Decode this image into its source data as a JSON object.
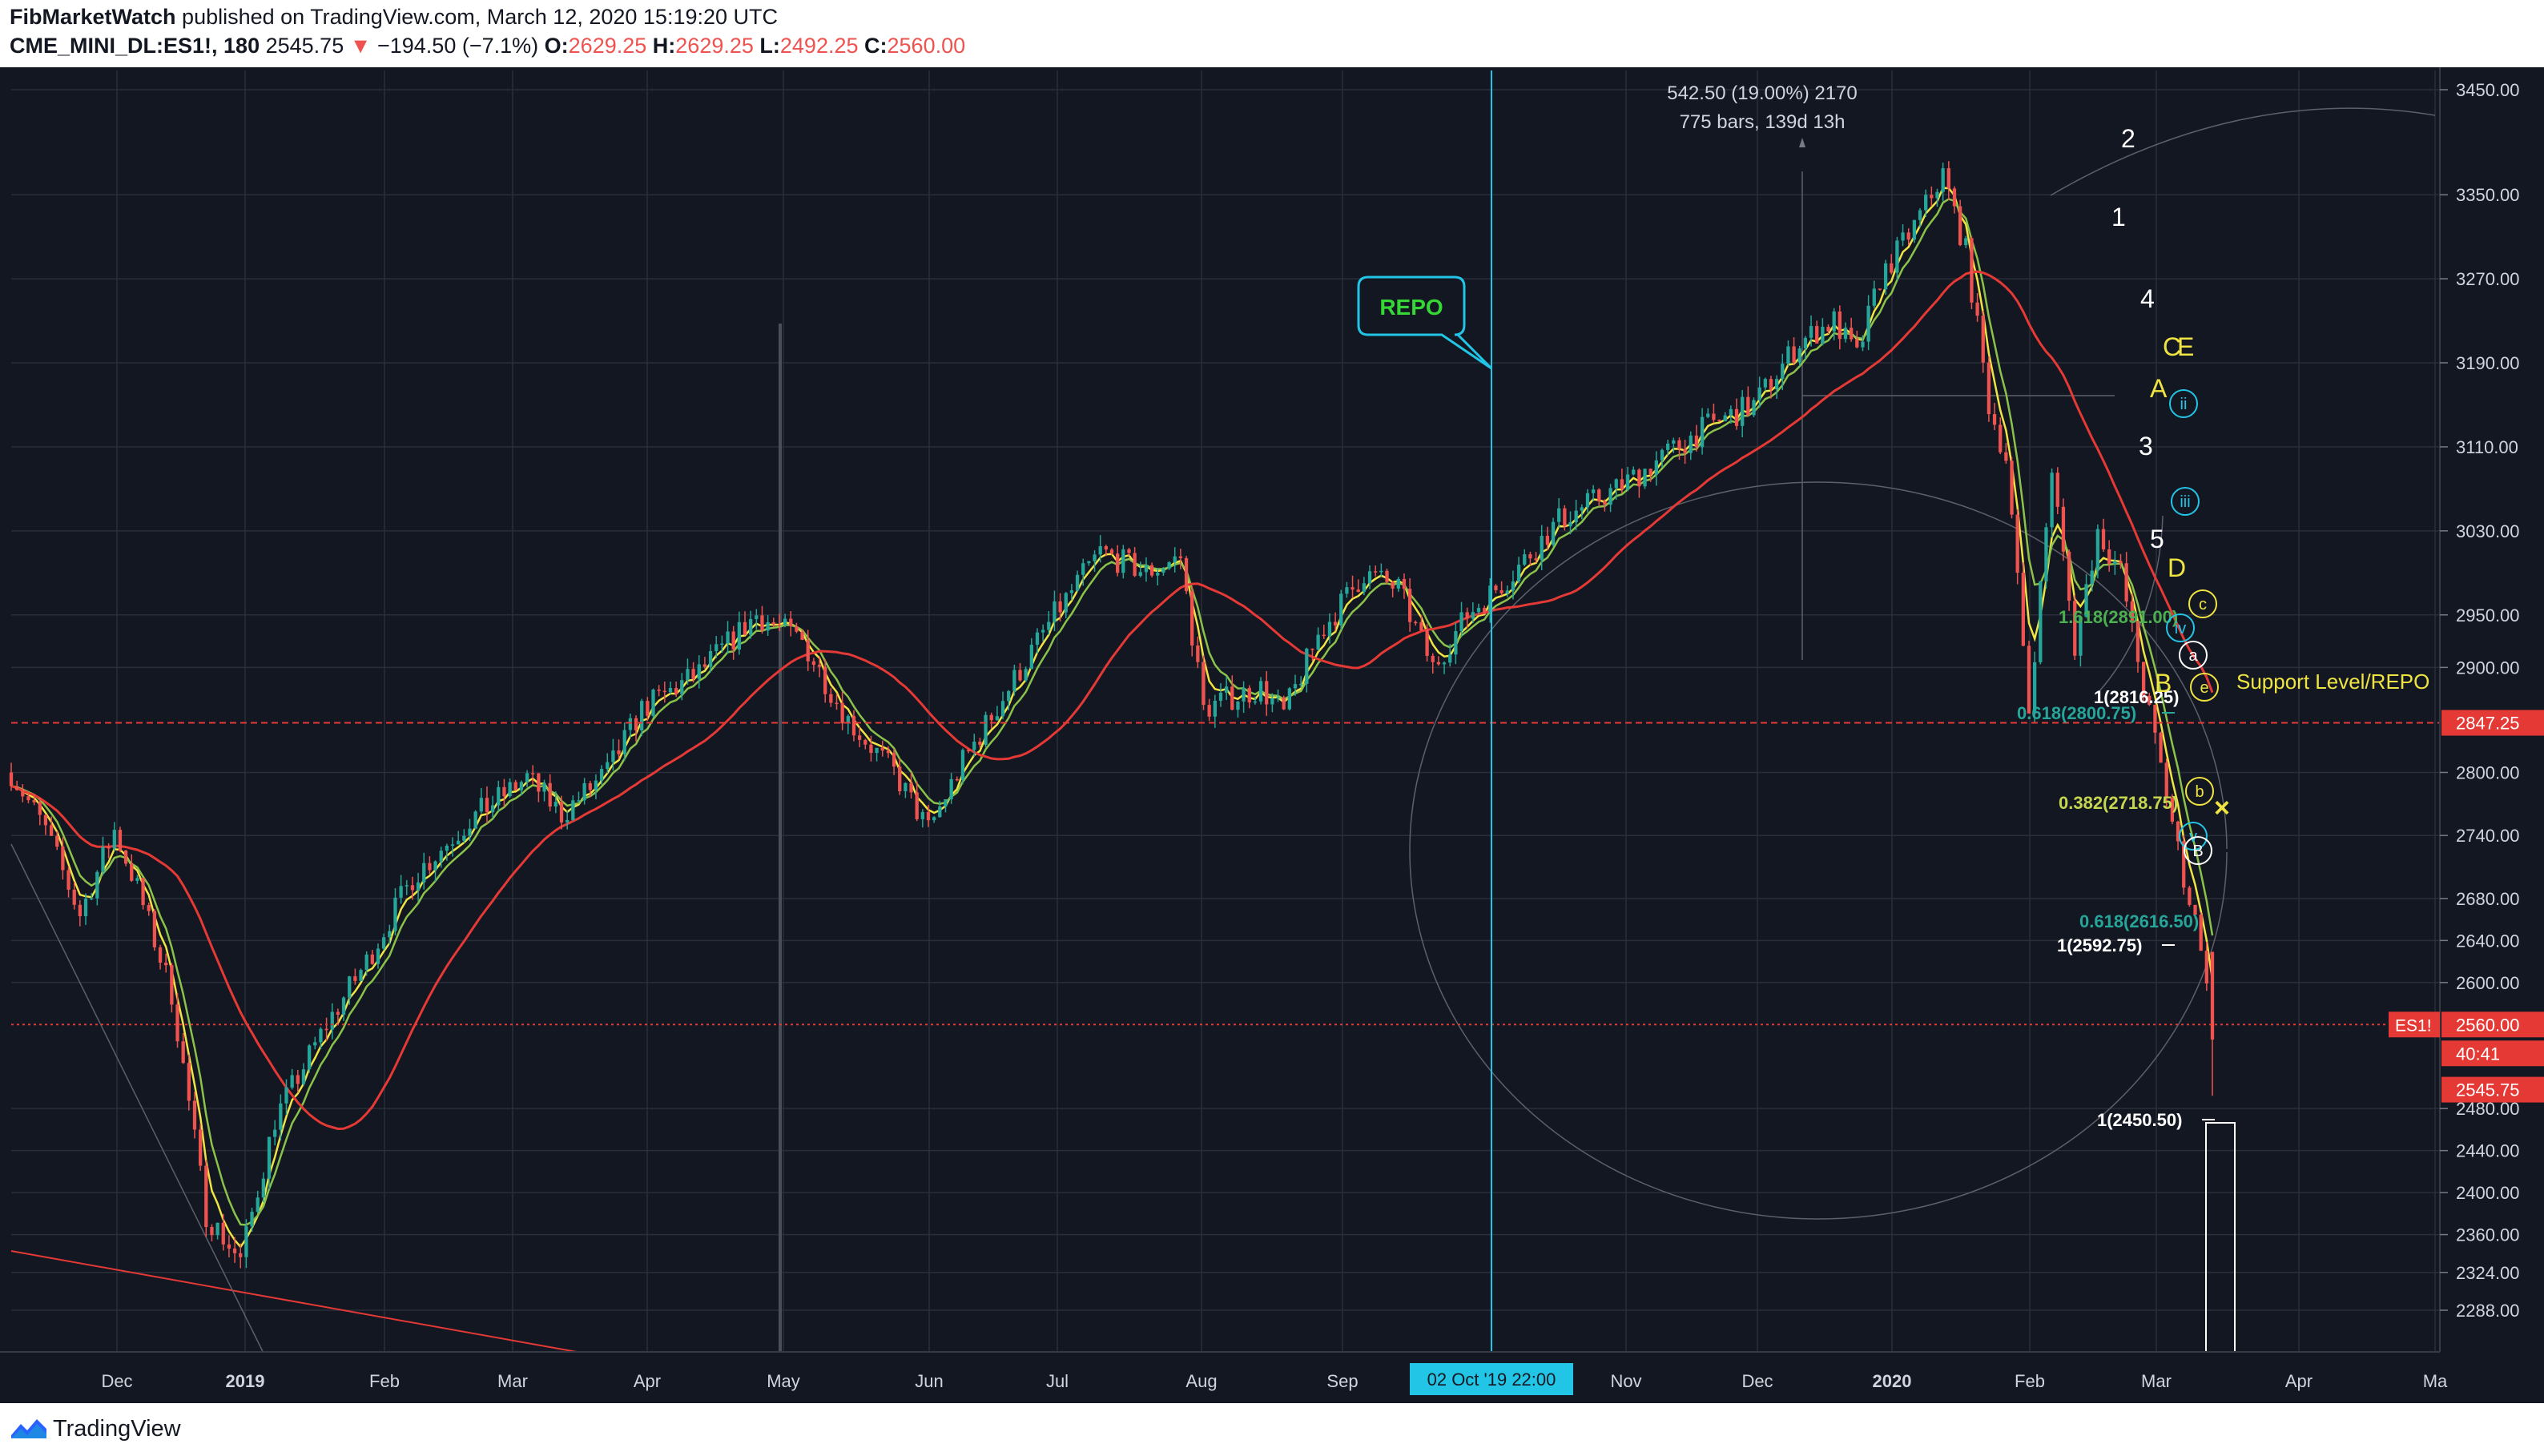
{
  "header": {
    "author": "FibMarketWatch",
    "published_text": "published on TradingView.com, March 12, 2020 15:19:20 UTC",
    "symbol": "CME_MINI_DL:ES1!, 180",
    "last_price": "2545.75",
    "change_arrow": "▼",
    "change": "−194.50 (−7.1%)",
    "o_label": "O:",
    "o_value": "2629.25",
    "h_label": "H:",
    "h_value": "2629.25",
    "l_label": "L:",
    "l_value": "2492.25",
    "c_label": "C:",
    "c_value": "2560.00"
  },
  "footer": {
    "brand": "TradingView"
  },
  "colors": {
    "background": "#131722",
    "grid": "#2a2e39",
    "candle_up": "#26a69a",
    "candle_down": "#ef5350",
    "ema_yellow": "#f0e442",
    "ema_green": "#8bc34a",
    "sma_red": "#e53935",
    "cyan": "#22c5e5"
  },
  "chart_data": {
    "type": "candlestick",
    "y_axis_ticks": [
      3450,
      3350,
      3270,
      3190,
      3110,
      3030,
      2950,
      2900,
      2800,
      2740,
      2680,
      2640,
      2600,
      2480,
      2440,
      2400,
      2360,
      2324,
      2288
    ],
    "y_axis_tick_labels": [
      "3450.00",
      "3350.00",
      "3270.00",
      "3190.00",
      "3110.00",
      "3030.00",
      "2950.00",
      "2900.00",
      "2800.00",
      "2740.00",
      "2680.00",
      "2640.00",
      "2600.00",
      "2480.00",
      "2440.00",
      "2400.00",
      "2360.00",
      "2324.00",
      "2288.00"
    ],
    "ylim": [
      2270,
      3470
    ],
    "x_axis_labels": [
      "Dec",
      "2019",
      "Feb",
      "Mar",
      "Apr",
      "May",
      "Jun",
      "Jul",
      "Aug",
      "Sep",
      "Nov",
      "Dec",
      "2020",
      "Feb",
      "Mar",
      "Apr",
      "Ma"
    ],
    "price_path": [
      [
        0,
        2800
      ],
      [
        6,
        2745
      ],
      [
        12,
        2665
      ],
      [
        18,
        2745
      ],
      [
        22,
        2690
      ],
      [
        28,
        2590
      ],
      [
        34,
        2380
      ],
      [
        40,
        2335
      ],
      [
        46,
        2470
      ],
      [
        55,
        2560
      ],
      [
        62,
        2620
      ],
      [
        70,
        2700
      ],
      [
        80,
        2755
      ],
      [
        90,
        2795
      ],
      [
        96,
        2760
      ],
      [
        104,
        2800
      ],
      [
        110,
        2860
      ],
      [
        120,
        2895
      ],
      [
        130,
        2950
      ],
      [
        138,
        2925
      ],
      [
        146,
        2850
      ],
      [
        154,
        2800
      ],
      [
        160,
        2745
      ],
      [
        166,
        2810
      ],
      [
        174,
        2880
      ],
      [
        182,
        2950
      ],
      [
        190,
        3010
      ],
      [
        198,
        2990
      ],
      [
        204,
        3005
      ],
      [
        208,
        2860
      ],
      [
        212,
        2870
      ],
      [
        218,
        2880
      ],
      [
        222,
        2855
      ],
      [
        228,
        2930
      ],
      [
        236,
        2990
      ],
      [
        242,
        2975
      ],
      [
        248,
        2900
      ],
      [
        254,
        2950
      ],
      [
        262,
        2990
      ],
      [
        270,
        3040
      ],
      [
        280,
        3070
      ],
      [
        288,
        3100
      ],
      [
        296,
        3130
      ],
      [
        304,
        3150
      ],
      [
        312,
        3210
      ],
      [
        318,
        3230
      ],
      [
        322,
        3195
      ],
      [
        326,
        3270
      ],
      [
        332,
        3320
      ],
      [
        337,
        3370
      ],
      [
        341,
        3296
      ],
      [
        345,
        3150
      ],
      [
        348,
        3100
      ],
      [
        352,
        2860
      ],
      [
        356,
        3090
      ],
      [
        360,
        2920
      ],
      [
        364,
        3030
      ],
      [
        368,
        2990
      ],
      [
        372,
        2880
      ],
      [
        376,
        2780
      ],
      [
        379,
        2700
      ],
      [
        382,
        2640
      ],
      [
        384,
        2545
      ]
    ],
    "moving_averages": [
      {
        "name": "",
        "color": "#f0e442"
      },
      {
        "name": "",
        "color": "#8bc34a"
      },
      {
        "name": "",
        "color": "#e53935"
      }
    ],
    "horizontal_lines": [
      {
        "price": 2847.25,
        "label": "2847.25",
        "style": "dashed",
        "color": "#e53935"
      },
      {
        "price": 2560.0,
        "label": "2560.00",
        "style": "dotted",
        "color": "#e53935"
      }
    ],
    "price_labels": {
      "es1_tag": "ES1!",
      "last_close": "2560.00",
      "countdown": "40:41",
      "current": "2545.75"
    },
    "vertical_marker": {
      "label": "02 Oct '19   22:00",
      "color": "#22c5e5"
    },
    "callout": {
      "text": "REPO"
    },
    "measure": {
      "line1": "542.50 (19.00%) 2170",
      "line2": "775 bars, 139d 13h"
    },
    "fib_levels": [
      {
        "label": "1.618(2891.00)",
        "color": "#4caf50"
      },
      {
        "label": "1(2816.25)",
        "color": "#ffffff"
      },
      {
        "label": "0.618(2800.75)",
        "color": "#26a69a"
      },
      {
        "label": "0.382(2718.75)",
        "color": "#c6d64f"
      },
      {
        "label": "0.618(2616.50)",
        "color": "#26a69a"
      },
      {
        "label": "1(2592.75)",
        "color": "#ffffff"
      },
      {
        "label": "1(2450.50)",
        "color": "#ffffff"
      }
    ],
    "support_text": "Support Level/REPO",
    "wave_labels": [
      {
        "text": "2",
        "color": "#ffffff"
      },
      {
        "text": "1",
        "color": "#ffffff"
      },
      {
        "text": "4",
        "color": "#ffffff"
      },
      {
        "text": "C",
        "color": "#f0e442"
      },
      {
        "text": "E",
        "color": "#f0e442"
      },
      {
        "text": "A",
        "color": "#f0e442"
      },
      {
        "text": "3",
        "color": "#ffffff"
      },
      {
        "text": "5",
        "color": "#ffffff"
      },
      {
        "text": "D",
        "color": "#f0e442"
      },
      {
        "text": "B",
        "color": "#f0e442"
      }
    ],
    "circled_labels": [
      {
        "text": "ii",
        "color": "#22c5e5"
      },
      {
        "text": "iii",
        "color": "#22c5e5"
      },
      {
        "text": "c",
        "color": "#f0e442"
      },
      {
        "text": "iv",
        "color": "#22c5e5"
      },
      {
        "text": "a",
        "color": "#ffffff"
      },
      {
        "text": "e",
        "color": "#f0e442"
      },
      {
        "text": "b",
        "color": "#f0e442"
      },
      {
        "text": "v",
        "color": "#22c5e5"
      },
      {
        "text": "B",
        "color": "#ffffff"
      }
    ],
    "x_marker": {
      "text": "×",
      "color": "#f0e442"
    }
  }
}
